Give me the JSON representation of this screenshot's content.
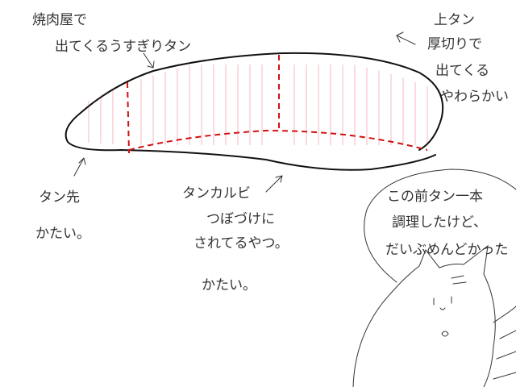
{
  "annotations": {
    "thin_slice": {
      "lines": [
        "焼肉屋で",
        "出てくるうすぎりタン"
      ]
    },
    "top_tongue": {
      "lines": [
        "上タン",
        "厚切りで",
        "出てくる",
        "やわらかい"
      ]
    },
    "tongue_tip": {
      "lines": [
        "タン先",
        "かたい。"
      ]
    },
    "tongue_kalbi": {
      "lines": [
        "タンカルビ",
        "つぼづけに",
        "されてるやつ。",
        "かたい。"
      ]
    },
    "speech": {
      "lines": [
        "この前タン一本",
        "調理したけど、",
        "だいぶめんどかった"
      ]
    }
  }
}
